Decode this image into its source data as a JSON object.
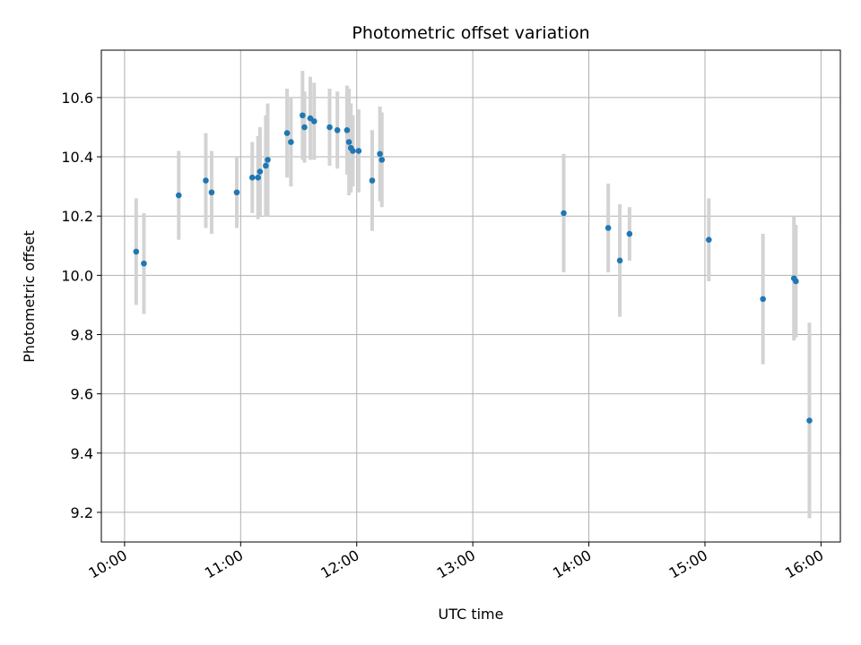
{
  "chart_data": {
    "type": "scatter",
    "title": "Photometric offset variation",
    "xlabel": "UTC time",
    "ylabel": "Photometric offset",
    "x_unit": "UTC time (HH:MM)",
    "xlim": [
      "09:48",
      "16:10"
    ],
    "ylim": [
      9.1,
      10.76
    ],
    "x_ticks": [
      "10:00",
      "11:00",
      "12:00",
      "13:00",
      "14:00",
      "15:00",
      "16:00"
    ],
    "y_ticks": [
      9.2,
      9.4,
      9.6,
      9.8,
      10.0,
      10.2,
      10.4,
      10.6
    ],
    "grid": true,
    "x_tick_rotation_deg": 30,
    "colors": {
      "marker": "#1f77b4",
      "errorbar": "#d3d3d3",
      "grid": "#b0b0b0",
      "axis": "#000000"
    },
    "points": [
      {
        "x": "10:06",
        "y": 10.08,
        "err": 0.18
      },
      {
        "x": "10:10",
        "y": 10.04,
        "err": 0.17
      },
      {
        "x": "10:28",
        "y": 10.27,
        "err": 0.15
      },
      {
        "x": "10:42",
        "y": 10.32,
        "err": 0.16
      },
      {
        "x": "10:45",
        "y": 10.28,
        "err": 0.14
      },
      {
        "x": "10:58",
        "y": 10.28,
        "err": 0.12
      },
      {
        "x": "11:06",
        "y": 10.33,
        "err": 0.12
      },
      {
        "x": "11:09",
        "y": 10.33,
        "err": 0.14
      },
      {
        "x": "11:10",
        "y": 10.35,
        "err": 0.15
      },
      {
        "x": "11:13",
        "y": 10.37,
        "err": 0.17
      },
      {
        "x": "11:14",
        "y": 10.39,
        "err": 0.19
      },
      {
        "x": "11:24",
        "y": 10.48,
        "err": 0.15
      },
      {
        "x": "11:26",
        "y": 10.45,
        "err": 0.15
      },
      {
        "x": "11:32",
        "y": 10.54,
        "err": 0.15
      },
      {
        "x": "11:33",
        "y": 10.5,
        "err": 0.12
      },
      {
        "x": "11:36",
        "y": 10.53,
        "err": 0.14
      },
      {
        "x": "11:38",
        "y": 10.52,
        "err": 0.13
      },
      {
        "x": "11:46",
        "y": 10.5,
        "err": 0.13
      },
      {
        "x": "11:50",
        "y": 10.49,
        "err": 0.13
      },
      {
        "x": "11:55",
        "y": 10.49,
        "err": 0.15
      },
      {
        "x": "11:56",
        "y": 10.45,
        "err": 0.18
      },
      {
        "x": "11:57",
        "y": 10.43,
        "err": 0.15
      },
      {
        "x": "11:58",
        "y": 10.42,
        "err": 0.12
      },
      {
        "x": "12:01",
        "y": 10.42,
        "err": 0.14
      },
      {
        "x": "12:08",
        "y": 10.32,
        "err": 0.17
      },
      {
        "x": "12:12",
        "y": 10.41,
        "err": 0.16
      },
      {
        "x": "12:13",
        "y": 10.39,
        "err": 0.16
      },
      {
        "x": "13:47",
        "y": 10.21,
        "err": 0.2
      },
      {
        "x": "14:10",
        "y": 10.16,
        "err": 0.15
      },
      {
        "x": "14:16",
        "y": 10.05,
        "err": 0.19
      },
      {
        "x": "14:21",
        "y": 10.14,
        "err": 0.09
      },
      {
        "x": "15:02",
        "y": 10.12,
        "err": 0.14
      },
      {
        "x": "15:30",
        "y": 9.92,
        "err": 0.22
      },
      {
        "x": "15:46",
        "y": 9.99,
        "err": 0.21
      },
      {
        "x": "15:47",
        "y": 9.98,
        "err": 0.19
      },
      {
        "x": "15:54",
        "y": 9.51,
        "err": 0.33
      }
    ]
  }
}
